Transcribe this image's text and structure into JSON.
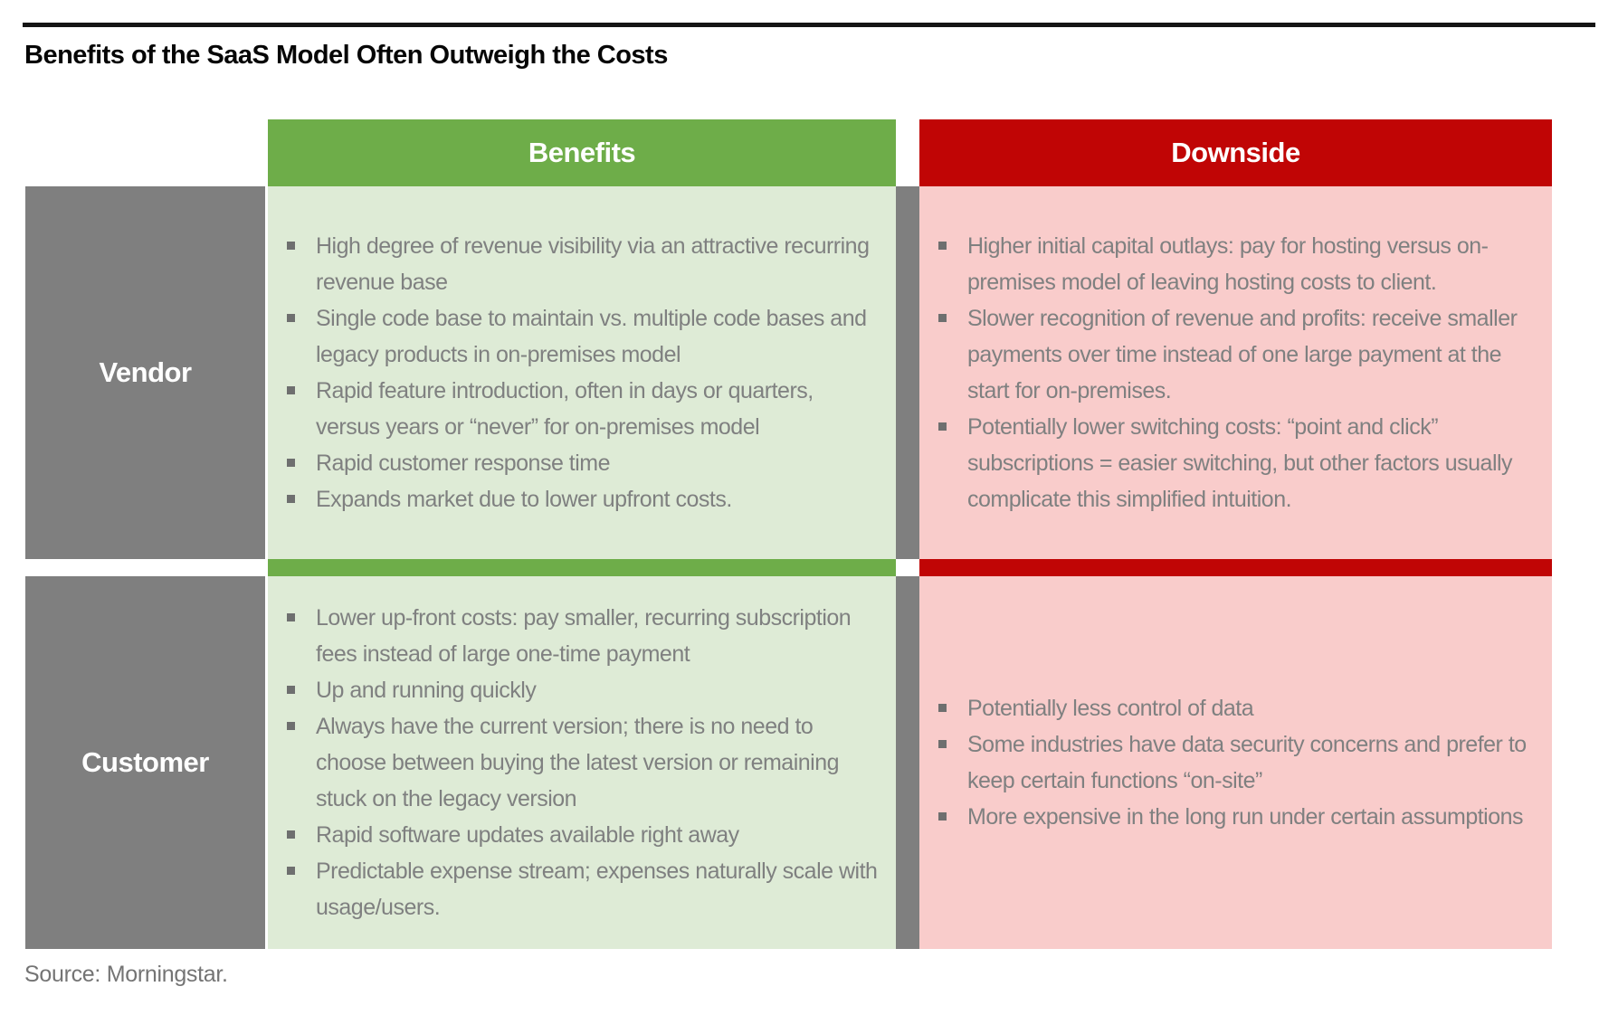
{
  "colors": {
    "green-header": "#6EAD49",
    "green-cell": "#DEEBD6",
    "red-header": "#C00505",
    "red-cell": "#F9CCCB",
    "gray": "#7F7F7F",
    "cell-text": "#7F8080",
    "rule-black": "#151515"
  },
  "header": {
    "title": "Benefits of the SaaS Model Often Outweigh the Costs"
  },
  "table": {
    "bullet_icon": "small-gray-square",
    "columns": [
      {
        "label": "Benefits"
      },
      {
        "label": "Downside"
      }
    ],
    "rows": [
      {
        "label": "Vendor",
        "benefits": [
          "High degree of revenue visibility via an attractive recurring revenue base",
          "Single code base to maintain vs. multiple code bases and legacy products in on-premises model",
          "Rapid feature introduction, often in days or quarters, versus years or “never” for on-premises model",
          "Rapid customer response time",
          "Expands market due to lower upfront costs."
        ],
        "downside": [
          "Higher initial capital outlays: pay for hosting versus on-premises model of leaving hosting costs to client.",
          "Slower recognition of revenue and profits: receive smaller payments over time instead of one large payment at the start for on-premises.",
          "Potentially lower switching costs: “point and click” subscriptions = easier switching, but other factors usually complicate this simplified intuition."
        ]
      },
      {
        "label": "Customer",
        "benefits": [
          "Lower up-front costs: pay smaller, recurring subscription fees instead of large one-time payment",
          "Up and running quickly",
          "Always have the current version; there is no need to choose between buying the latest version or remaining stuck on the legacy version",
          "Rapid software updates available right away",
          "Predictable expense stream; expenses naturally scale with usage/users."
        ],
        "downside": [
          "Potentially less control of data",
          "Some industries have data security concerns and prefer to keep certain functions “on-site”",
          "More expensive in the long run under certain assumptions"
        ]
      }
    ]
  },
  "footer": {
    "source": "Source: Morningstar."
  }
}
